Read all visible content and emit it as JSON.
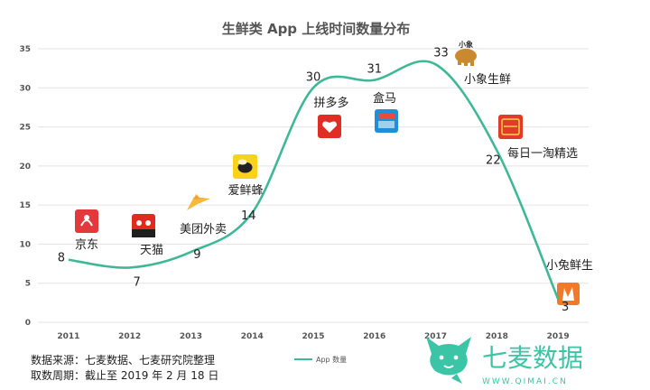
{
  "chart_data": {
    "type": "line",
    "title": "生鲜类 App 上线时间数量分布",
    "categories": [
      "2011",
      "2012",
      "2013",
      "2014",
      "2015",
      "2016",
      "2017",
      "2018",
      "2019"
    ],
    "series": [
      {
        "name": "App 数量",
        "values": [
          8,
          7,
          9,
          14,
          30,
          31,
          33,
          22,
          3
        ],
        "color": "#40b898"
      }
    ],
    "ylim": [
      0,
      35
    ],
    "yticks": [
      "0",
      "5",
      "10",
      "15",
      "20",
      "25",
      "30",
      "35"
    ],
    "grid": true,
    "legend_position": "bottom-center",
    "annotations": [
      {
        "text": "京东",
        "year": "2011",
        "icon": "jd-app-icon",
        "color": "#e4393c"
      },
      {
        "text": "天猫",
        "year": "2012",
        "icon": "tmall-app-icon",
        "color": "#e02b20"
      },
      {
        "text": "美团外卖",
        "year": "2013",
        "icon": "meituan-waimai-app-icon",
        "color": "#f6b83d"
      },
      {
        "text": "爱鲜蜂",
        "year": "2014",
        "icon": "aixianfeng-app-icon",
        "color": "#f8d21c"
      },
      {
        "text": "拼多多",
        "year": "2015",
        "icon": "pinduoduo-app-icon",
        "color": "#e02e24"
      },
      {
        "text": "盒马",
        "year": "2016",
        "icon": "hema-app-icon",
        "color": "#1e8fd8"
      },
      {
        "text": "小象生鲜",
        "year": "2017",
        "icon": "xiaoxiang-app-icon",
        "color": "#c98a2f",
        "icon_text": "小象"
      },
      {
        "text": "每日一淘精选",
        "year": "2018",
        "icon": "meiriyitao-app-icon",
        "color": "#e33b2a"
      },
      {
        "text": "小兔鲜生",
        "year": "2019",
        "icon": "xiaotu-app-icon",
        "color": "#f07a2a"
      }
    ]
  },
  "source": {
    "line1": "数据来源：七麦数据、七麦研究院整理",
    "line2": "取数周期：截止至 2019 年 2 月 18 日"
  },
  "brand": {
    "name": "七麦数据",
    "url": "WWW.QIMAI.CN",
    "color": "#3cc4a6",
    "icon": "cat-logo-icon"
  }
}
